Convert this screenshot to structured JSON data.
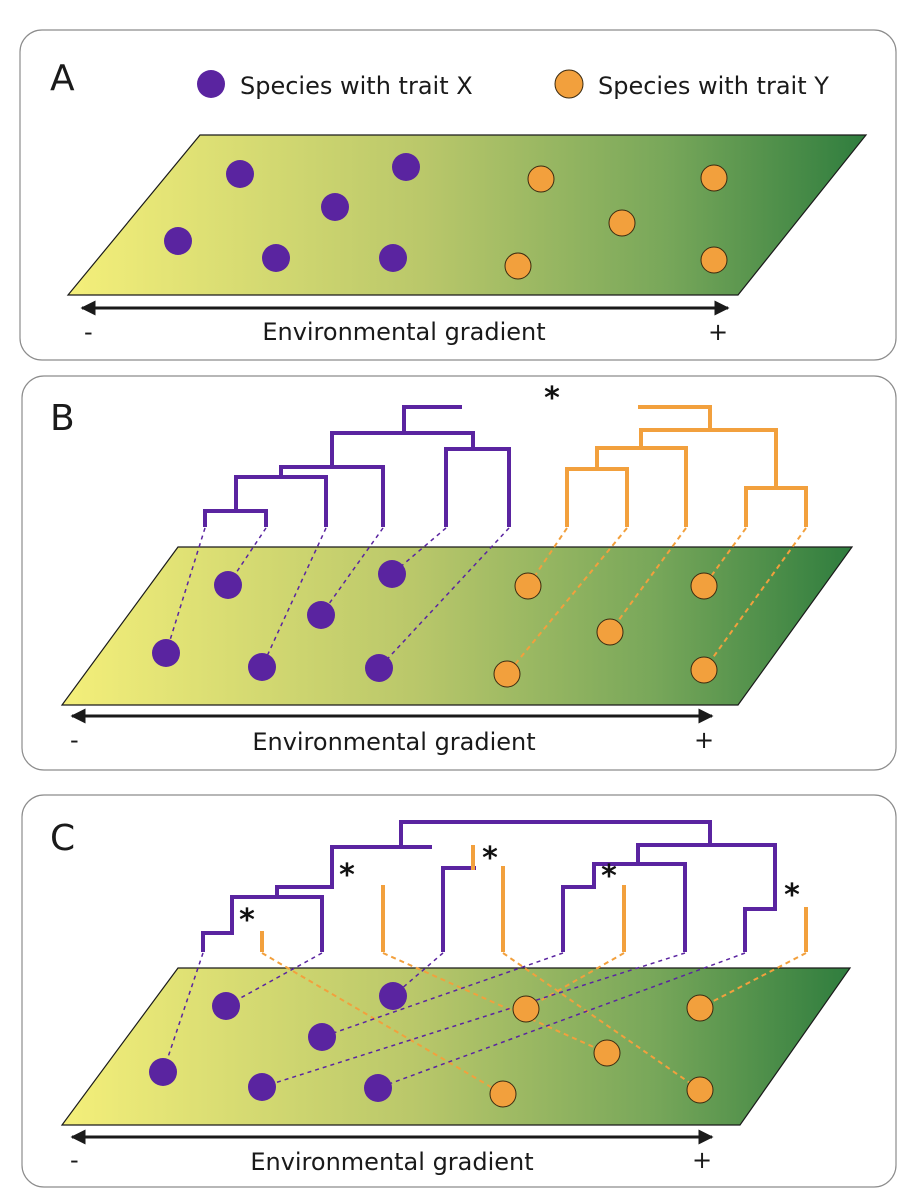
{
  "legend": {
    "trait_x_label": "Species with trait X",
    "trait_y_label": "Species with trait Y"
  },
  "panels": [
    {
      "letter": "A",
      "axis_label": "Environmental gradient",
      "minus": "-",
      "plus": "+"
    },
    {
      "letter": "B",
      "axis_label": "Environmental gradient",
      "minus": "-",
      "plus": "+",
      "star": "*"
    },
    {
      "letter": "C",
      "axis_label": "Environmental gradient",
      "minus": "-",
      "plus": "+",
      "star": "*"
    }
  ],
  "colors": {
    "trait_x": "#5a24a0",
    "trait_y": "#f2a03d",
    "gradient_low": "#f4ef7a",
    "gradient_high": "#2f7d3e"
  }
}
